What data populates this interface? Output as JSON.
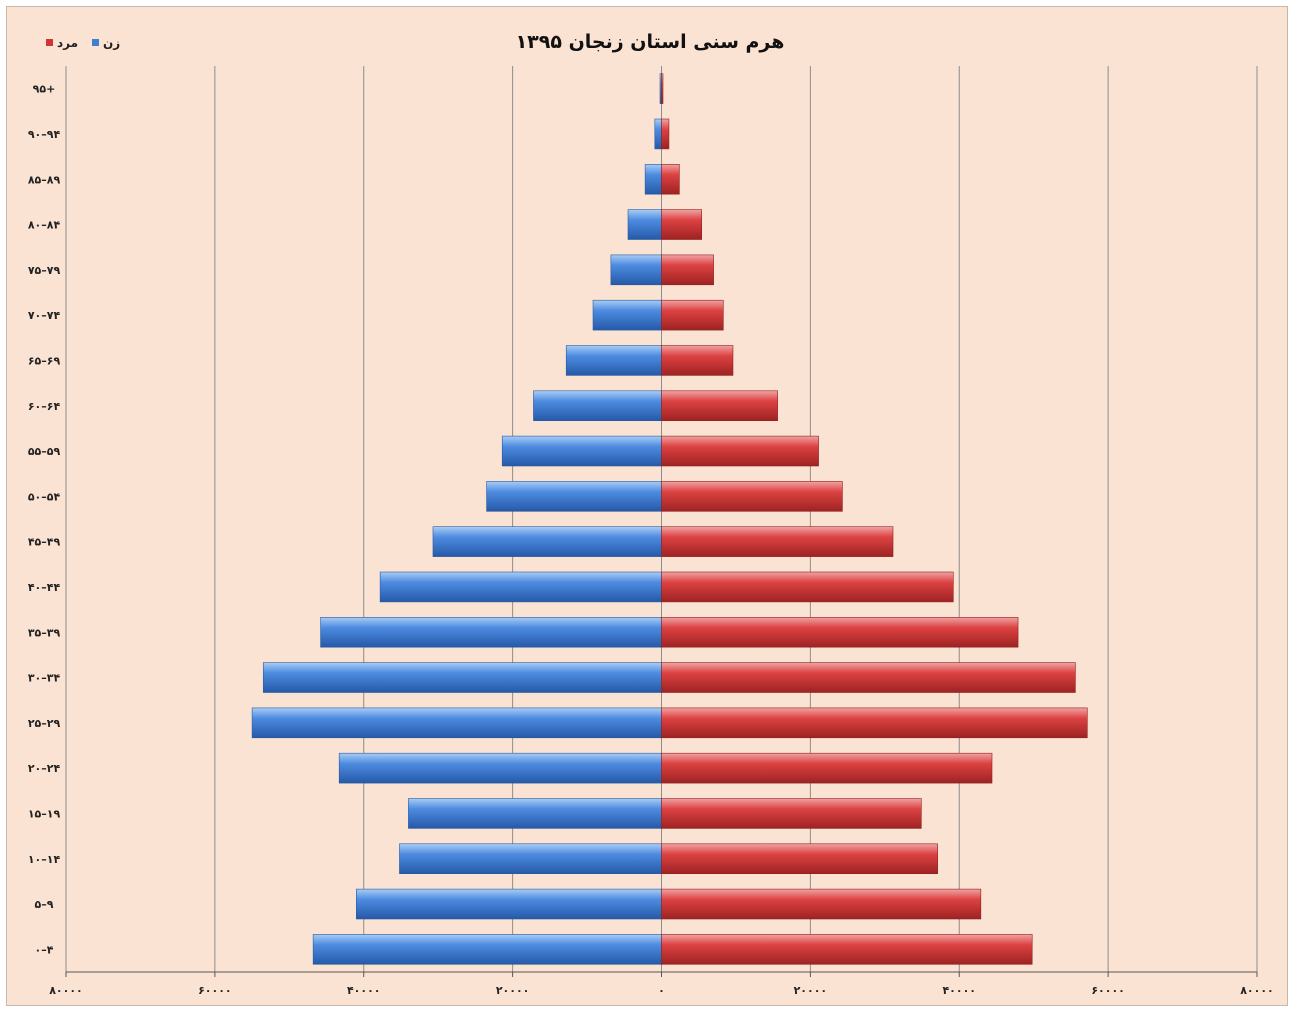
{
  "chart_data": {
    "type": "bar",
    "orientation": "horizontal",
    "title": "هرم سنی استان زنجان ۱۳۹۵",
    "categories": [
      "۰–۴",
      "۵–۹",
      "۱۰–۱۴",
      "۱۵–۱۹",
      "۲۰–۲۴",
      "۲۵–۲۹",
      "۳۰–۳۴",
      "۳۵–۳۹",
      "۴۰–۴۴",
      "۴۵–۴۹",
      "۵۰–۵۴",
      "۵۵–۵۹",
      "۶۰–۶۴",
      "۶۵–۶۹",
      "۷۰–۷۴",
      "۷۵–۷۹",
      "۸۰–۸۴",
      "۸۵–۸۹",
      "۹۰–۹۴",
      "۹۵+"
    ],
    "series": [
      {
        "name": "زن",
        "color": "#3f7fd3",
        "values": [
          46800,
          41000,
          35200,
          34000,
          43300,
          55000,
          53500,
          45800,
          37800,
          30700,
          23500,
          21400,
          17200,
          12800,
          9200,
          6800,
          4500,
          2200,
          900,
          200
        ]
      },
      {
        "name": "مرد",
        "color": "#d03535",
        "values": [
          49800,
          42900,
          37100,
          34900,
          44400,
          57200,
          55600,
          47900,
          39200,
          31100,
          24300,
          21100,
          15600,
          9600,
          8300,
          7000,
          5400,
          2400,
          1000,
          200
        ]
      }
    ],
    "xlim": [
      -80000,
      80000
    ],
    "tick_labels": [
      "۸۰۰۰۰",
      "۶۰۰۰۰",
      "۴۰۰۰۰",
      "۲۰۰۰۰",
      "۰",
      "۲۰۰۰۰",
      "۴۰۰۰۰",
      "۶۰۰۰۰",
      "۸۰۰۰۰"
    ],
    "grid": true,
    "legend_position": "top-left"
  }
}
